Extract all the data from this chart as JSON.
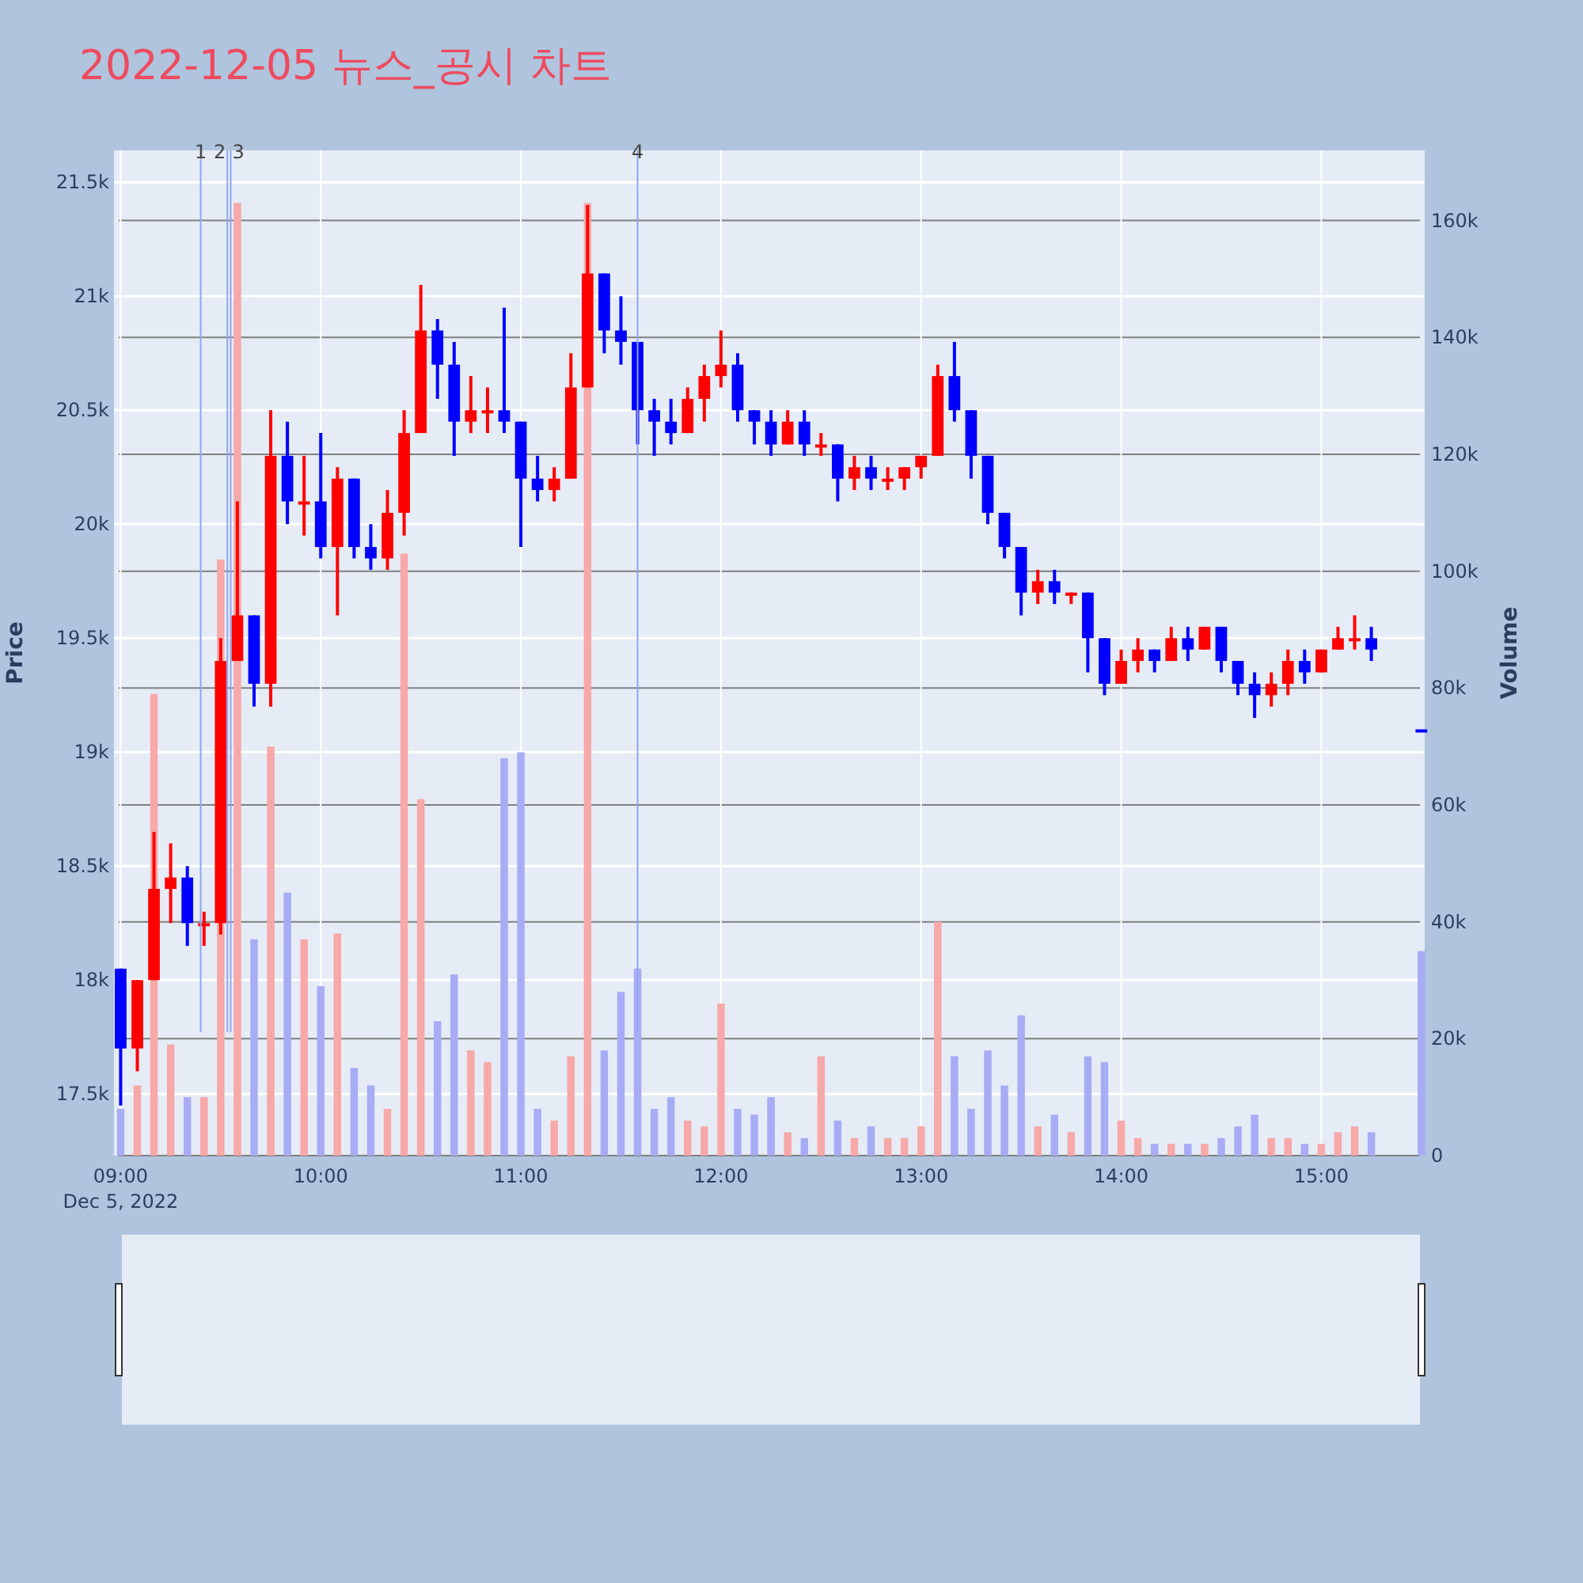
{
  "chart_data": {
    "type": "candlestick",
    "title": "2022-12-05 뉴스_공시 차트",
    "ylabel": "Price",
    "y2label": "Volume",
    "x": [
      "2022-12-05T09:00",
      "2022-12-05T09:05",
      "2022-12-05T09:10",
      "2022-12-05T09:15",
      "2022-12-05T09:20",
      "2022-12-05T09:25",
      "2022-12-05T09:30",
      "2022-12-05T09:35",
      "2022-12-05T09:40",
      "2022-12-05T09:45",
      "2022-12-05T09:50",
      "2022-12-05T09:55",
      "2022-12-05T10:00",
      "2022-12-05T10:05",
      "2022-12-05T10:10",
      "2022-12-05T10:15",
      "2022-12-05T10:20",
      "2022-12-05T10:25",
      "2022-12-05T10:30",
      "2022-12-05T10:35",
      "2022-12-05T10:40",
      "2022-12-05T10:45",
      "2022-12-05T10:50",
      "2022-12-05T10:55",
      "2022-12-05T11:00",
      "2022-12-05T11:05",
      "2022-12-05T11:10",
      "2022-12-05T11:15",
      "2022-12-05T11:20",
      "2022-12-05T11:25",
      "2022-12-05T11:30",
      "2022-12-05T11:35",
      "2022-12-05T11:40",
      "2022-12-05T11:45",
      "2022-12-05T11:50",
      "2022-12-05T11:55",
      "2022-12-05T12:00",
      "2022-12-05T12:05",
      "2022-12-05T12:10",
      "2022-12-05T12:15",
      "2022-12-05T12:20",
      "2022-12-05T12:25",
      "2022-12-05T12:30",
      "2022-12-05T12:35",
      "2022-12-05T12:40",
      "2022-12-05T12:45",
      "2022-12-05T12:50",
      "2022-12-05T12:55",
      "2022-12-05T13:00",
      "2022-12-05T13:05",
      "2022-12-05T13:10",
      "2022-12-05T13:15",
      "2022-12-05T13:20",
      "2022-12-05T13:25",
      "2022-12-05T13:30",
      "2022-12-05T13:35",
      "2022-12-05T13:40",
      "2022-12-05T13:45",
      "2022-12-05T13:50",
      "2022-12-05T13:55",
      "2022-12-05T14:00",
      "2022-12-05T14:05",
      "2022-12-05T14:10",
      "2022-12-05T14:15",
      "2022-12-05T14:20",
      "2022-12-05T14:25",
      "2022-12-05T14:30",
      "2022-12-05T14:35",
      "2022-12-05T14:40",
      "2022-12-05T14:45",
      "2022-12-05T14:50",
      "2022-12-05T14:55",
      "2022-12-05T15:00",
      "2022-12-05T15:05",
      "2022-12-05T15:10",
      "2022-12-05T15:15",
      "2022-12-05T15:30"
    ],
    "ohlc": [
      [
        18050,
        18050,
        17450,
        17700
      ],
      [
        17700,
        18000,
        17600,
        18000
      ],
      [
        18000,
        18650,
        18000,
        18400
      ],
      [
        18400,
        18600,
        18250,
        18450
      ],
      [
        18450,
        18500,
        18150,
        18250
      ],
      [
        18250,
        18300,
        18150,
        18250
      ],
      [
        18250,
        19500,
        18200,
        19400
      ],
      [
        19400,
        20100,
        19400,
        19600
      ],
      [
        19600,
        19600,
        19200,
        19300
      ],
      [
        19300,
        20500,
        19200,
        20300
      ],
      [
        20300,
        20450,
        20000,
        20100
      ],
      [
        20100,
        20300,
        19950,
        20100
      ],
      [
        20100,
        20400,
        19850,
        19900
      ],
      [
        19900,
        20250,
        19600,
        20200
      ],
      [
        20200,
        20200,
        19850,
        19900
      ],
      [
        19900,
        20000,
        19800,
        19850
      ],
      [
        19850,
        20150,
        19800,
        20050
      ],
      [
        20050,
        20500,
        19950,
        20400
      ],
      [
        20400,
        21050,
        20400,
        20850
      ],
      [
        20850,
        20900,
        20550,
        20700
      ],
      [
        20700,
        20800,
        20300,
        20450
      ],
      [
        20450,
        20650,
        20400,
        20500
      ],
      [
        20500,
        20600,
        20400,
        20500
      ],
      [
        20500,
        20950,
        20400,
        20450
      ],
      [
        20450,
        20450,
        19900,
        20200
      ],
      [
        20200,
        20300,
        20100,
        20150
      ],
      [
        20150,
        20250,
        20100,
        20200
      ],
      [
        20200,
        20750,
        20200,
        20600
      ],
      [
        20600,
        21400,
        20600,
        21100
      ],
      [
        21100,
        21100,
        20750,
        20850
      ],
      [
        20850,
        21000,
        20700,
        20800
      ],
      [
        20800,
        20800,
        20350,
        20500
      ],
      [
        20500,
        20550,
        20300,
        20450
      ],
      [
        20450,
        20550,
        20350,
        20400
      ],
      [
        20400,
        20600,
        20400,
        20550
      ],
      [
        20550,
        20700,
        20450,
        20650
      ],
      [
        20650,
        20850,
        20600,
        20700
      ],
      [
        20700,
        20750,
        20450,
        20500
      ],
      [
        20500,
        20500,
        20350,
        20450
      ],
      [
        20450,
        20500,
        20300,
        20350
      ],
      [
        20350,
        20500,
        20350,
        20450
      ],
      [
        20450,
        20500,
        20300,
        20350
      ],
      [
        20350,
        20400,
        20300,
        20350
      ],
      [
        20350,
        20350,
        20100,
        20200
      ],
      [
        20200,
        20300,
        20150,
        20250
      ],
      [
        20250,
        20300,
        20150,
        20200
      ],
      [
        20200,
        20250,
        20150,
        20200
      ],
      [
        20200,
        20250,
        20150,
        20250
      ],
      [
        20250,
        20300,
        20200,
        20300
      ],
      [
        20300,
        20700,
        20300,
        20650
      ],
      [
        20650,
        20800,
        20450,
        20500
      ],
      [
        20500,
        20500,
        20200,
        20300
      ],
      [
        20300,
        20300,
        20000,
        20050
      ],
      [
        20050,
        20050,
        19850,
        19900
      ],
      [
        19900,
        19900,
        19600,
        19700
      ],
      [
        19700,
        19800,
        19650,
        19750
      ],
      [
        19750,
        19800,
        19650,
        19700
      ],
      [
        19700,
        19700,
        19650,
        19700
      ],
      [
        19700,
        19700,
        19350,
        19500
      ],
      [
        19500,
        19500,
        19250,
        19300
      ],
      [
        19300,
        19450,
        19300,
        19400
      ],
      [
        19400,
        19500,
        19350,
        19450
      ],
      [
        19450,
        19450,
        19350,
        19400
      ],
      [
        19400,
        19550,
        19400,
        19500
      ],
      [
        19500,
        19550,
        19400,
        19450
      ],
      [
        19450,
        19550,
        19450,
        19550
      ],
      [
        19550,
        19550,
        19350,
        19400
      ],
      [
        19400,
        19400,
        19250,
        19300
      ],
      [
        19300,
        19350,
        19150,
        19250
      ],
      [
        19250,
        19350,
        19200,
        19300
      ],
      [
        19300,
        19450,
        19250,
        19400
      ],
      [
        19400,
        19450,
        19300,
        19350
      ],
      [
        19350,
        19450,
        19350,
        19450
      ],
      [
        19450,
        19550,
        19450,
        19500
      ],
      [
        19500,
        19600,
        19450,
        19500
      ],
      [
        19500,
        19550,
        19400,
        19450
      ],
      [
        19100,
        19100,
        19100,
        19100
      ]
    ],
    "colors": [
      "#0000ff",
      "#ff0000",
      "#ff0000",
      "#ff0000",
      "#0000ff",
      "#ff0000",
      "#ff0000",
      "#ff0000",
      "#0000ff",
      "#ff0000",
      "#0000ff",
      "#ff0000",
      "#0000ff",
      "#ff0000",
      "#0000ff",
      "#0000ff",
      "#ff0000",
      "#ff0000",
      "#ff0000",
      "#0000ff",
      "#0000ff",
      "#ff0000",
      "#ff0000",
      "#0000ff",
      "#0000ff",
      "#0000ff",
      "#ff0000",
      "#ff0000",
      "#ff0000",
      "#0000ff",
      "#0000ff",
      "#0000ff",
      "#0000ff",
      "#0000ff",
      "#ff0000",
      "#ff0000",
      "#ff0000",
      "#0000ff",
      "#0000ff",
      "#0000ff",
      "#ff0000",
      "#0000ff",
      "#ff0000",
      "#0000ff",
      "#ff0000",
      "#0000ff",
      "#ff0000",
      "#ff0000",
      "#ff0000",
      "#ff0000",
      "#0000ff",
      "#0000ff",
      "#0000ff",
      "#0000ff",
      "#0000ff",
      "#ff0000",
      "#0000ff",
      "#ff0000",
      "#0000ff",
      "#0000ff",
      "#ff0000",
      "#ff0000",
      "#0000ff",
      "#ff0000",
      "#0000ff",
      "#ff0000",
      "#0000ff",
      "#0000ff",
      "#0000ff",
      "#ff0000",
      "#ff0000",
      "#0000ff",
      "#ff0000",
      "#ff0000",
      "#ff0000",
      "#0000ff",
      "#0000ff"
    ],
    "series": [
      {
        "type": "bar",
        "axis": "y2",
        "values": [
          8000,
          12000,
          79000,
          19000,
          10000,
          10000,
          102000,
          163000,
          37000,
          70000,
          45000,
          37000,
          29000,
          38000,
          15000,
          12000,
          8000,
          103000,
          61000,
          23000,
          31000,
          18000,
          16000,
          68000,
          69000,
          8000,
          6000,
          17000,
          163000,
          18000,
          28000,
          32000,
          8000,
          10000,
          6000,
          5000,
          26000,
          8000,
          7000,
          10000,
          4000,
          3000,
          17000,
          6000,
          3000,
          5000,
          3000,
          3000,
          5000,
          40000,
          17000,
          8000,
          18000,
          12000,
          24000,
          5000,
          7000,
          4000,
          17000,
          16000,
          6000,
          3000,
          2000,
          2000,
          2000,
          2000,
          3000,
          5000,
          7000,
          3000,
          3000,
          2000,
          2000,
          4000,
          5000,
          4000,
          35000
        ],
        "colors": [
          "#a8acf5",
          "#f7a8a8",
          "#f7a8a8",
          "#f7a8a8",
          "#a8acf5",
          "#f7a8a8",
          "#f7a8a8",
          "#f7a8a8",
          "#a8acf5",
          "#f7a8a8",
          "#a8acf5",
          "#f7a8a8",
          "#a8acf5",
          "#f7a8a8",
          "#a8acf5",
          "#a8acf5",
          "#f7a8a8",
          "#f7a8a8",
          "#f7a8a8",
          "#a8acf5",
          "#a8acf5",
          "#f7a8a8",
          "#f7a8a8",
          "#a8acf5",
          "#a8acf5",
          "#a8acf5",
          "#f7a8a8",
          "#f7a8a8",
          "#f7a8a8",
          "#a8acf5",
          "#a8acf5",
          "#a8acf5",
          "#a8acf5",
          "#a8acf5",
          "#f7a8a8",
          "#f7a8a8",
          "#f7a8a8",
          "#a8acf5",
          "#a8acf5",
          "#a8acf5",
          "#f7a8a8",
          "#a8acf5",
          "#f7a8a8",
          "#a8acf5",
          "#f7a8a8",
          "#a8acf5",
          "#f7a8a8",
          "#f7a8a8",
          "#f7a8a8",
          "#f7a8a8",
          "#a8acf5",
          "#a8acf5",
          "#a8acf5",
          "#a8acf5",
          "#a8acf5",
          "#f7a8a8",
          "#a8acf5",
          "#f7a8a8",
          "#a8acf5",
          "#a8acf5",
          "#f7a8a8",
          "#f7a8a8",
          "#a8acf5",
          "#f7a8a8",
          "#a8acf5",
          "#f7a8a8",
          "#a8acf5",
          "#a8acf5",
          "#a8acf5",
          "#f7a8a8",
          "#f7a8a8",
          "#a8acf5",
          "#f7a8a8",
          "#f7a8a8",
          "#f7a8a8",
          "#a8acf5",
          "#a8acf5"
        ]
      }
    ],
    "xlim": [
      "2022-12-05T08:58",
      "2022-12-05T15:31"
    ],
    "xticks": [
      {
        "value": "2022-12-05T09:00",
        "label": "09:00\nDec 5, 2022"
      },
      {
        "value": "2022-12-05T10:00",
        "label": "10:00"
      },
      {
        "value": "2022-12-05T11:00",
        "label": "11:00"
      },
      {
        "value": "2022-12-05T12:00",
        "label": "12:00"
      },
      {
        "value": "2022-12-05T13:00",
        "label": "13:00"
      },
      {
        "value": "2022-12-05T14:00",
        "label": "14:00"
      },
      {
        "value": "2022-12-05T15:00",
        "label": "15:00"
      }
    ],
    "ylim": [
      17230,
      21640
    ],
    "yticks": [
      {
        "value": 17500,
        "label": "17.5k"
      },
      {
        "value": 18000,
        "label": "18k"
      },
      {
        "value": 18500,
        "label": "18.5k"
      },
      {
        "value": 19000,
        "label": "19k"
      },
      {
        "value": 19500,
        "label": "19.5k"
      },
      {
        "value": 20000,
        "label": "20k"
      },
      {
        "value": 20500,
        "label": "20.5k"
      },
      {
        "value": 21000,
        "label": "21k"
      },
      {
        "value": 21500,
        "label": "21.5k"
      }
    ],
    "y2lim": [
      0,
      172000
    ],
    "y2ticks": [
      0,
      {
        "value": 20000,
        "label": "20k"
      },
      {
        "value": 40000,
        "label": "40k"
      },
      {
        "value": 60000,
        "label": "60k"
      },
      {
        "value": 80000,
        "label": "80k"
      },
      {
        "value": 100000,
        "label": "100k"
      },
      {
        "value": 120000,
        "label": "120k"
      },
      {
        "value": 140000,
        "label": "140k"
      },
      {
        "value": 160000,
        "label": "160k"
      }
    ],
    "ref_lines": [
      {
        "axis": "x",
        "value": "2022-12-05T09:24",
        "label": "1",
        "color": "#8fa6ee"
      },
      {
        "axis": "x",
        "value": "2022-12-05T09:32",
        "label": "2",
        "color": "#8fa6ee"
      },
      {
        "axis": "x",
        "value": "2022-12-05T09:33",
        "label": "3",
        "color": "#8fa6ee"
      },
      {
        "axis": "x",
        "value": "2022-12-05T11:35",
        "label": "4",
        "color": "#8fa6ee"
      }
    ],
    "grid": true
  }
}
